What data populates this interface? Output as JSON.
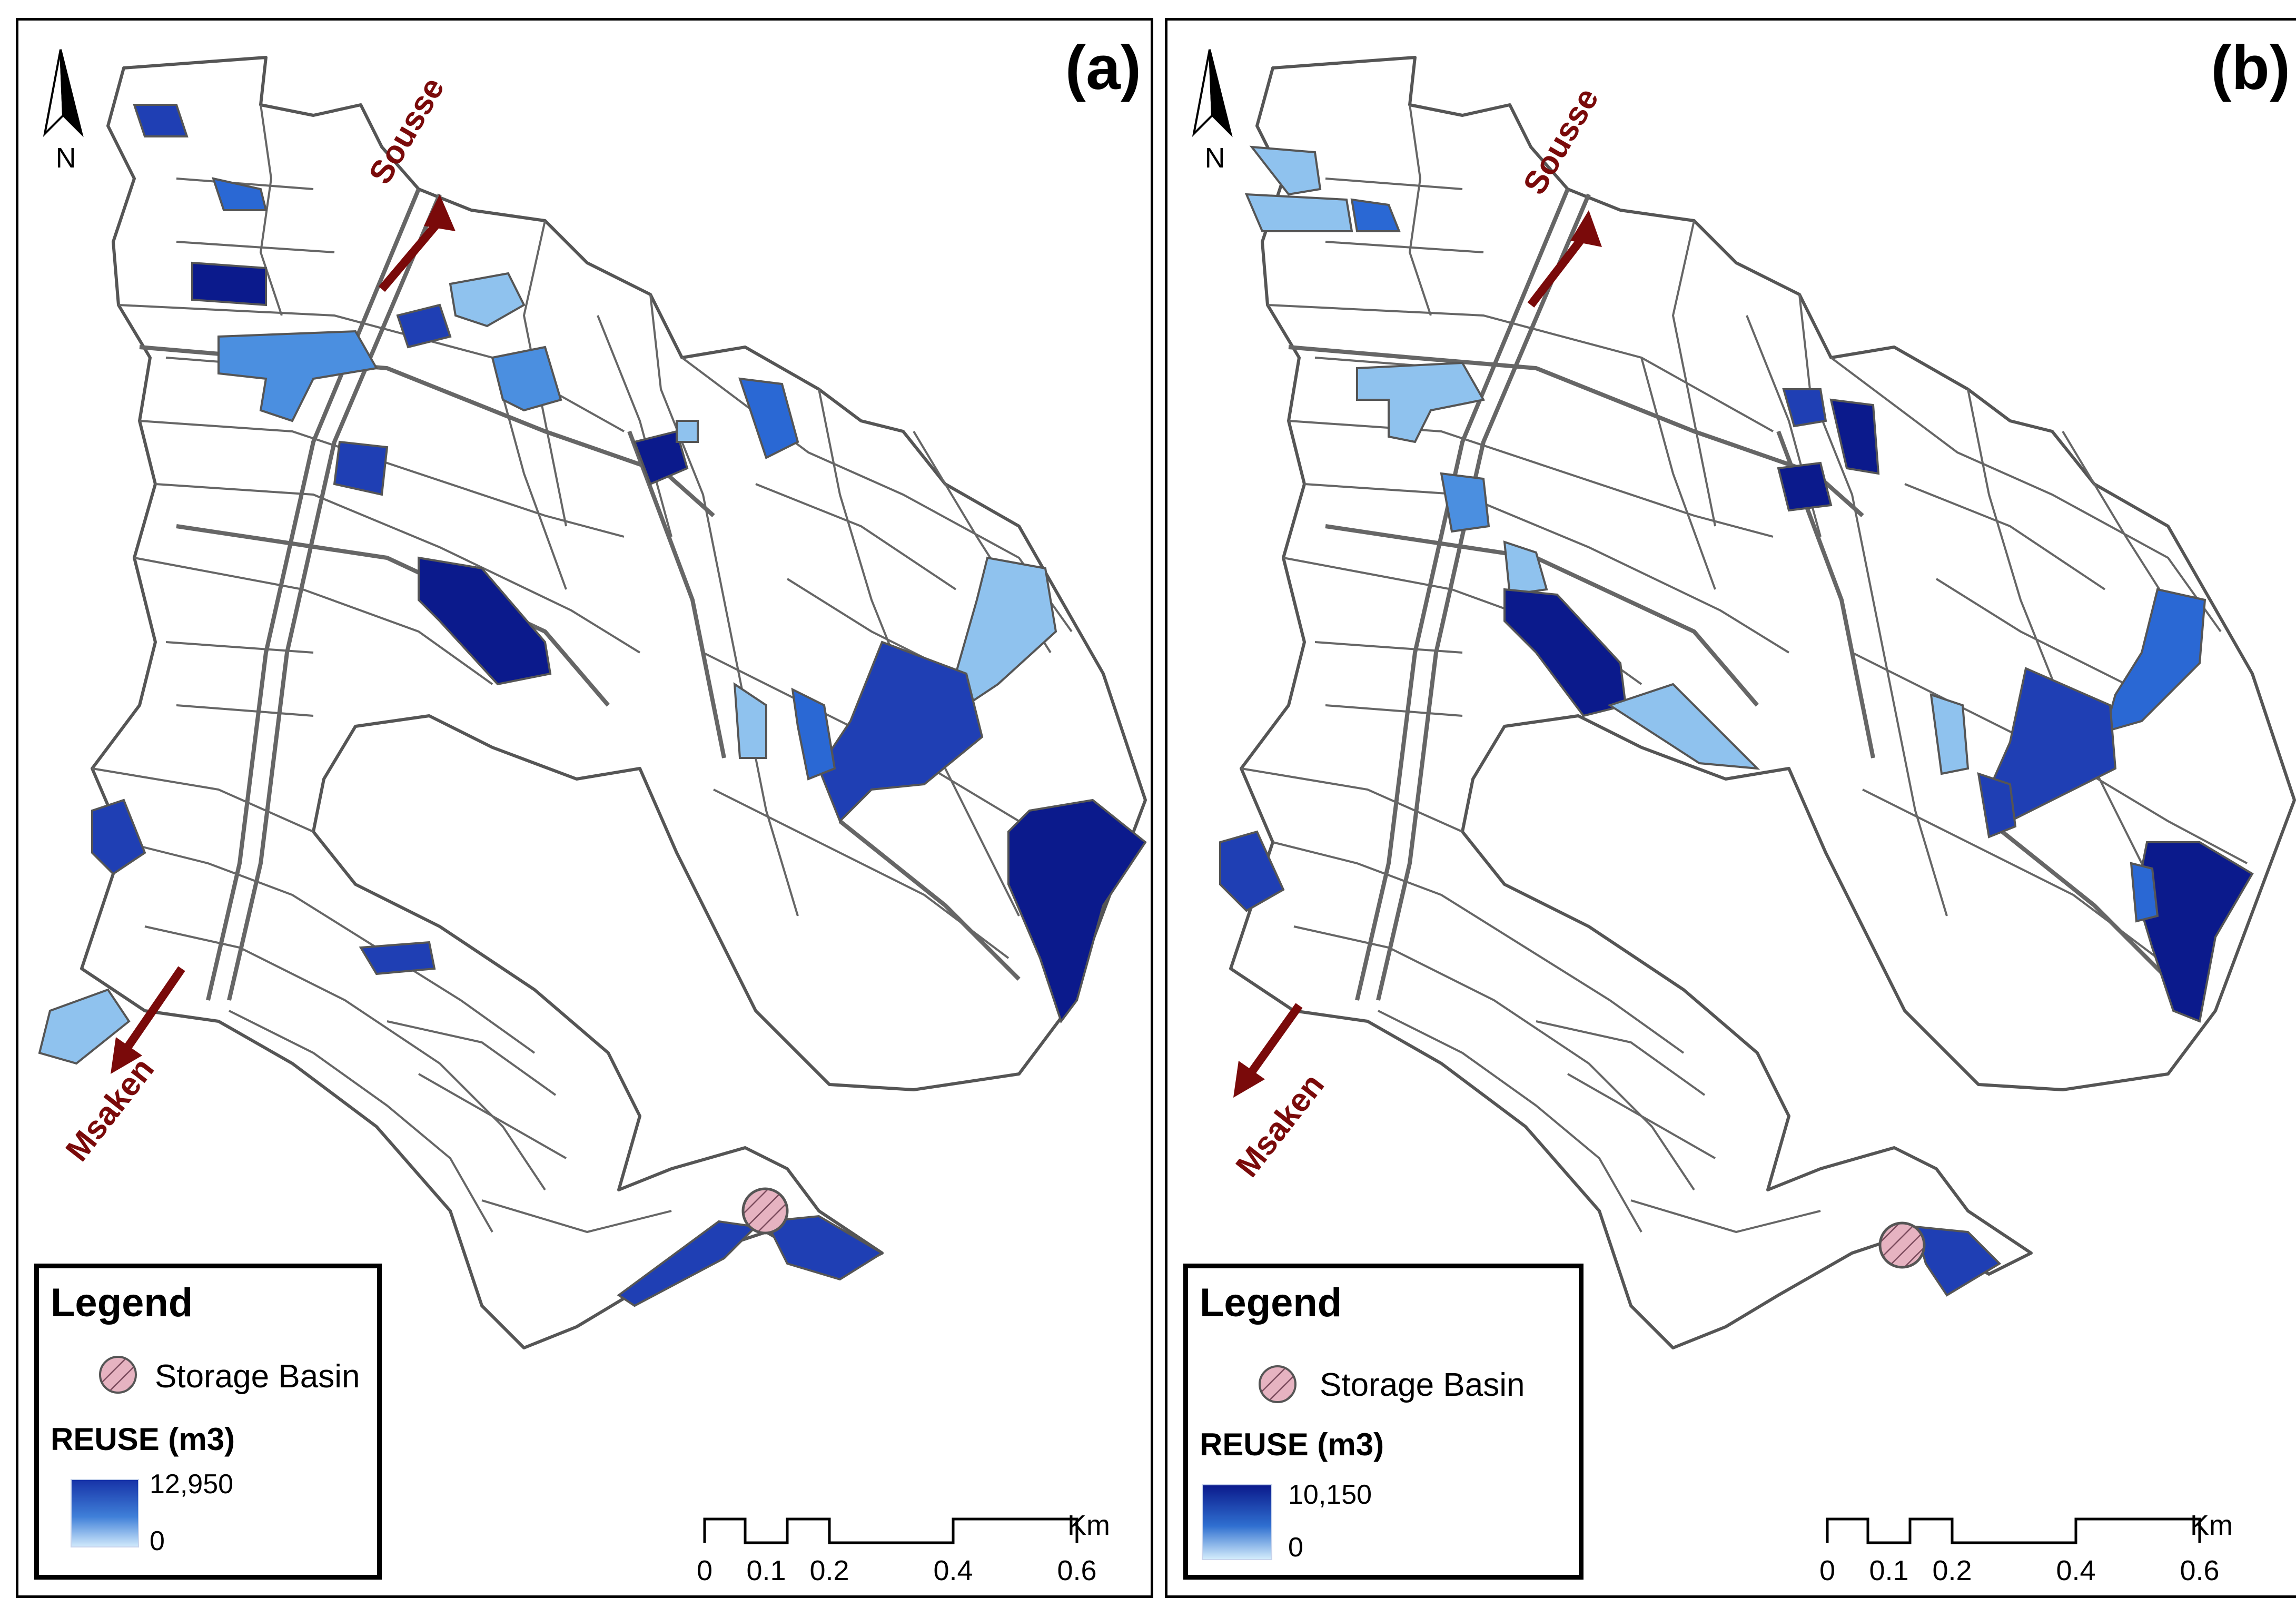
{
  "panels": [
    {
      "label": "(a)",
      "north": "N",
      "roads": {
        "north_city": "Sousse",
        "south_city": "Msaken"
      },
      "legend": {
        "title": "Legend",
        "basin_label": "Storage Basin",
        "reuse_title": "REUSE (m3)",
        "ramp_max": "12,950",
        "ramp_min": "0"
      },
      "scale": {
        "ticks": [
          "0",
          "0.1",
          "0.2",
          "0.4",
          "0.6"
        ],
        "unit": "Km"
      }
    },
    {
      "label": "(b)",
      "north": "N",
      "roads": {
        "north_city": "Sousse",
        "south_city": "Msaken"
      },
      "legend": {
        "title": "Legend",
        "basin_label": "Storage Basin",
        "reuse_title": "REUSE (m3)",
        "ramp_max": "10,150",
        "ramp_min": "0"
      },
      "scale": {
        "ticks": [
          "0",
          "0.1",
          "0.2",
          "0.4",
          "0.6"
        ],
        "unit": "Km"
      }
    }
  ],
  "colors": {
    "very_dark": "#0b1a8c",
    "dark": "#1f3fb4",
    "medium": "#2a68d4",
    "light": "#4b8fe0",
    "pale": "#8fc2ee",
    "road_arrow": "#7a0a0a",
    "parcel_outline": "#555555",
    "basin_fill": "#d9a0b0"
  }
}
